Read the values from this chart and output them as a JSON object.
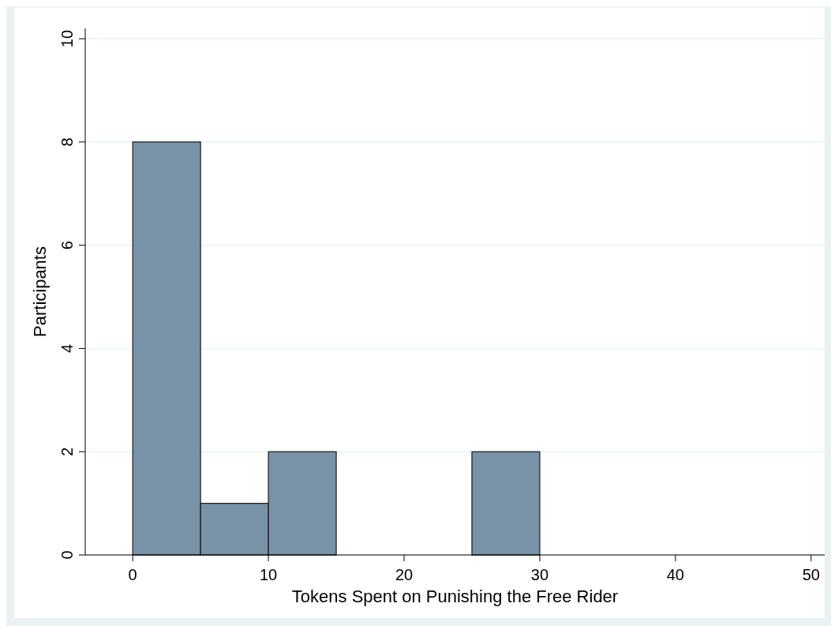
{
  "chart_data": {
    "type": "histogram",
    "xlabel": "Tokens Spent on Punishing the Free Rider",
    "ylabel": "Participants",
    "bins": [
      0,
      5,
      10,
      15,
      20,
      25,
      30
    ],
    "values": [
      8,
      1,
      2,
      0,
      0,
      2
    ],
    "color": "#7892a8",
    "xlim": [
      -3.5,
      51
    ],
    "xticks": [
      0,
      10,
      20,
      30,
      40,
      50
    ],
    "ylim": [
      0,
      10.2
    ],
    "yticks": [
      0,
      2,
      4,
      6,
      8,
      10
    ],
    "grid": "y"
  }
}
